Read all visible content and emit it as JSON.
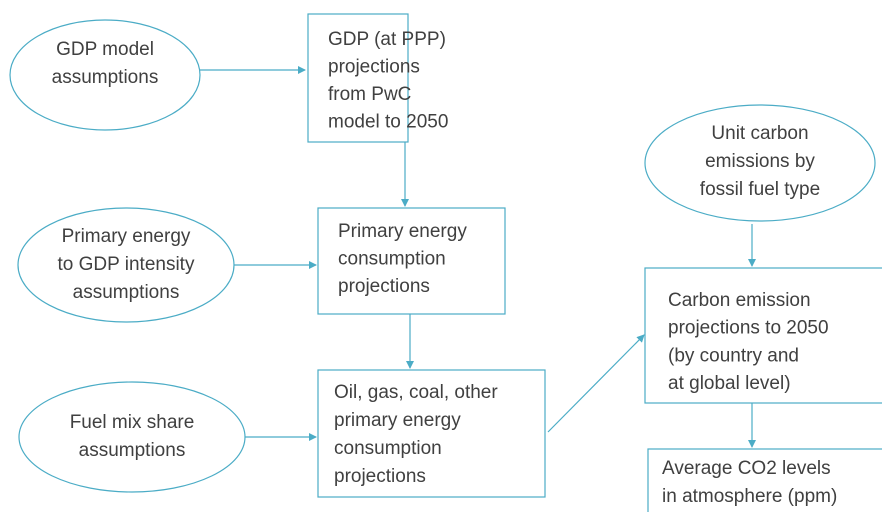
{
  "nodes": [
    {
      "lines": [
        "GDP model",
        "assumptions"
      ]
    },
    {
      "lines": [
        "GDP (at PPP)",
        "projections",
        "from PwC",
        "model to 2050"
      ]
    },
    {
      "lines": [
        "Primary energy",
        "to GDP intensity",
        "assumptions"
      ]
    },
    {
      "lines": [
        "Primary energy",
        "consumption",
        "projections"
      ]
    },
    {
      "lines": [
        "Fuel mix share",
        "assumptions"
      ]
    },
    {
      "lines": [
        "Oil, gas, coal, other",
        "primary energy",
        "consumption",
        "projections"
      ]
    },
    {
      "lines": [
        "Unit carbon",
        "emissions by",
        "fossil fuel type"
      ]
    },
    {
      "lines": [
        "Carbon emission",
        "projections to 2050",
        "(by country and",
        "at global level)"
      ]
    },
    {
      "lines": [
        "Average CO2 levels",
        "in atmosphere (ppm)"
      ]
    }
  ]
}
